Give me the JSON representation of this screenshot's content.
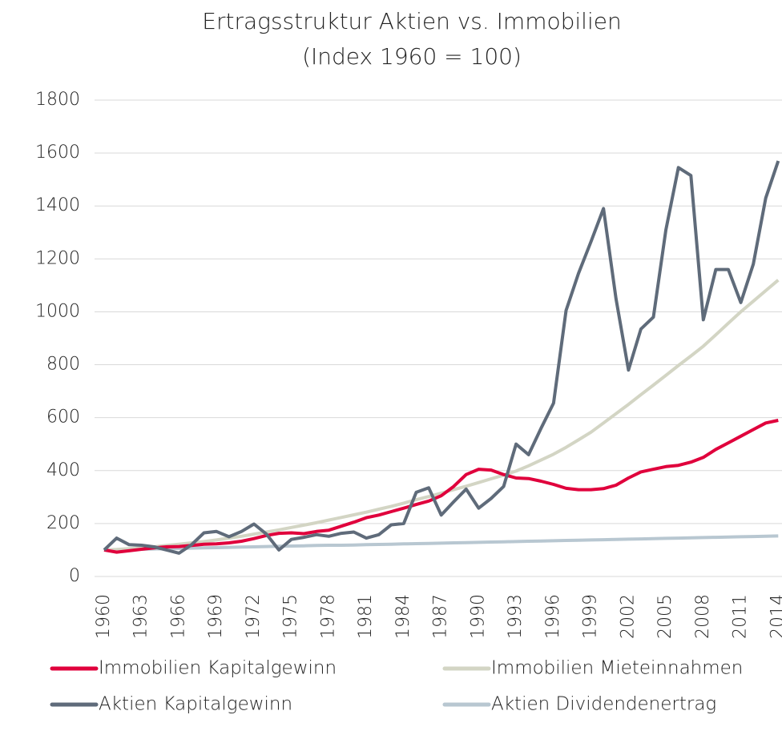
{
  "chart_data": {
    "type": "line",
    "title": "Ertragsstruktur Aktien vs. Immobilien",
    "subtitle": "(Index 1960 = 100)",
    "x": [
      1960,
      1961,
      1962,
      1963,
      1964,
      1965,
      1966,
      1967,
      1968,
      1969,
      1970,
      1971,
      1972,
      1973,
      1974,
      1975,
      1976,
      1977,
      1978,
      1979,
      1980,
      1981,
      1982,
      1983,
      1984,
      1985,
      1986,
      1987,
      1988,
      1989,
      1990,
      1991,
      1992,
      1993,
      1994,
      1995,
      1996,
      1997,
      1998,
      1999,
      2000,
      2001,
      2002,
      2003,
      2004,
      2005,
      2006,
      2007,
      2008,
      2009,
      2010,
      2011,
      2012,
      2013,
      2014
    ],
    "xlim": [
      1960,
      2014.3
    ],
    "xticks": [
      1960,
      1963,
      1966,
      1969,
      1972,
      1975,
      1978,
      1981,
      1984,
      1987,
      1990,
      1993,
      1996,
      1999,
      2002,
      2005,
      2008,
      2011,
      2014
    ],
    "ylim": [
      0,
      1800
    ],
    "yticks": [
      0,
      200,
      400,
      600,
      800,
      1000,
      1200,
      1400,
      1600,
      1800
    ],
    "grid": true,
    "legend": "bottom",
    "series": [
      {
        "name": "Immobilien Kapitalgewinn",
        "color": "#e0003c",
        "values": [
          100,
          92,
          97,
          103,
          108,
          112,
          113,
          117,
          122,
          123,
          127,
          133,
          143,
          155,
          163,
          165,
          162,
          170,
          175,
          190,
          205,
          222,
          232,
          245,
          258,
          272,
          285,
          305,
          340,
          385,
          405,
          402,
          385,
          372,
          370,
          360,
          348,
          333,
          328,
          328,
          332,
          345,
          372,
          395,
          405,
          415,
          420,
          432,
          450,
          480,
          505,
          530,
          555,
          580,
          590
        ]
      },
      {
        "name": "Immobilien Mieteinnahmen",
        "color": "#d3d5c4",
        "values": [
          100,
          102,
          105,
          108,
          112,
          117,
          122,
          127,
          132,
          138,
          145,
          152,
          160,
          168,
          176,
          185,
          194,
          203,
          213,
          223,
          233,
          243,
          254,
          265,
          277,
          290,
          302,
          315,
          328,
          341,
          355,
          369,
          383,
          398,
          418,
          440,
          462,
          488,
          516,
          545,
          580,
          615,
          650,
          687,
          723,
          760,
          797,
          833,
          870,
          913,
          957,
          1000,
          1040,
          1080,
          1120
        ]
      },
      {
        "name": "Aktien Kapitalgewinn",
        "color": "#5f6b7a",
        "values": [
          100,
          145,
          120,
          118,
          112,
          100,
          88,
          120,
          165,
          170,
          150,
          170,
          198,
          160,
          100,
          140,
          148,
          158,
          152,
          163,
          168,
          145,
          158,
          195,
          200,
          318,
          335,
          232,
          282,
          330,
          258,
          295,
          340,
          500,
          460,
          560,
          655,
          1005,
          1145,
          1265,
          1390,
          1050,
          780,
          935,
          980,
          1310,
          1545,
          1515,
          970,
          1160,
          1160,
          1035,
          1180,
          1430,
          1570
        ]
      },
      {
        "name": "Aktien Dividendenertrag",
        "color": "#b8c7d1",
        "values": [
          100,
          101,
          102,
          103,
          104,
          105,
          106,
          107,
          108,
          109,
          110,
          111,
          112,
          113,
          114,
          115,
          116,
          117,
          118,
          118,
          119,
          120,
          121,
          122,
          123,
          124,
          125,
          126,
          127,
          128,
          129,
          130,
          131,
          132,
          133,
          134,
          135,
          136,
          137,
          138,
          139,
          140,
          141,
          142,
          143,
          144,
          145,
          146,
          147,
          148,
          149,
          150,
          151,
          152,
          153
        ]
      }
    ]
  }
}
